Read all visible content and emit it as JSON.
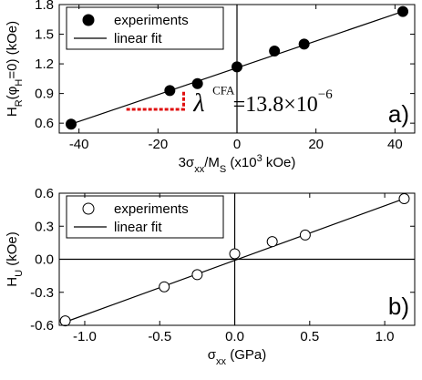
{
  "chart_data": [
    {
      "type": "scatter",
      "panel_label": "a)",
      "xlabel_parts": [
        "3σ",
        "xx",
        "/M",
        "S",
        " (x10",
        "3",
        " kOe)"
      ],
      "ylabel_parts": [
        "H",
        "R",
        "(φ",
        "H",
        "=0)  (kOe)"
      ],
      "xlim": [
        -45,
        45
      ],
      "ylim": [
        0.5,
        1.8
      ],
      "xticks": [
        -40,
        -20,
        0,
        20,
        40
      ],
      "xtick_labels": [
        "-40",
        "-20",
        "0",
        "20",
        "40"
      ],
      "yticks": [
        0.6,
        0.9,
        1.2,
        1.5,
        1.8
      ],
      "ytick_labels": [
        "0.6",
        "0.9",
        "1.2",
        "1.5",
        "1.8"
      ],
      "legend": {
        "placement": "top-left",
        "entries": [
          "experiments",
          "linear fit"
        ]
      },
      "series": [
        {
          "name": "experiments",
          "marker": "filled-circle",
          "x": [
            -42,
            -17,
            -10,
            0,
            9.5,
            17,
            42
          ],
          "y": [
            0.59,
            0.93,
            1.0,
            1.17,
            1.33,
            1.4,
            1.73
          ]
        }
      ],
      "fit_line": {
        "x": [
          -42,
          42
        ],
        "y": [
          0.59,
          1.73
        ]
      },
      "annotation": {
        "symbol": "λ",
        "superscript": "CFA",
        "text": "=13.8×10",
        "exponent": "−6",
        "marker_color": "#e01010"
      },
      "zero_lines": {
        "vertical_at_x": 0
      }
    },
    {
      "type": "scatter",
      "panel_label": "b)",
      "xlabel_parts": [
        "σ",
        "xx",
        " (GPa)"
      ],
      "ylabel_parts": [
        "H",
        "U",
        " (kOe)"
      ],
      "xlim": [
        -1.17,
        1.2
      ],
      "ylim": [
        -0.6,
        0.6
      ],
      "xticks": [
        -1.0,
        -0.5,
        0.0,
        0.5,
        1.0
      ],
      "xtick_labels": [
        "-1.0",
        "-0.5",
        "0.0",
        "0.5",
        "1.0"
      ],
      "yticks": [
        -0.6,
        -0.3,
        0.0,
        0.3,
        0.6
      ],
      "ytick_labels": [
        "-0.6",
        "-0.3",
        "0.0",
        "0.3",
        "0.6"
      ],
      "legend": {
        "placement": "top-left",
        "entries": [
          "experiments",
          "linear fit"
        ]
      },
      "series": [
        {
          "name": "experiments",
          "marker": "open-circle",
          "x": [
            -1.13,
            -0.47,
            -0.25,
            0.0,
            0.25,
            0.47,
            1.13
          ],
          "y": [
            -0.56,
            -0.25,
            -0.14,
            0.05,
            0.16,
            0.22,
            0.55
          ]
        }
      ],
      "fit_line": {
        "x": [
          -1.13,
          1.15
        ],
        "y": [
          -0.57,
          0.56
        ]
      },
      "zero_lines": {
        "vertical_at_x": 0,
        "horizontal_at_y": 0
      }
    }
  ]
}
